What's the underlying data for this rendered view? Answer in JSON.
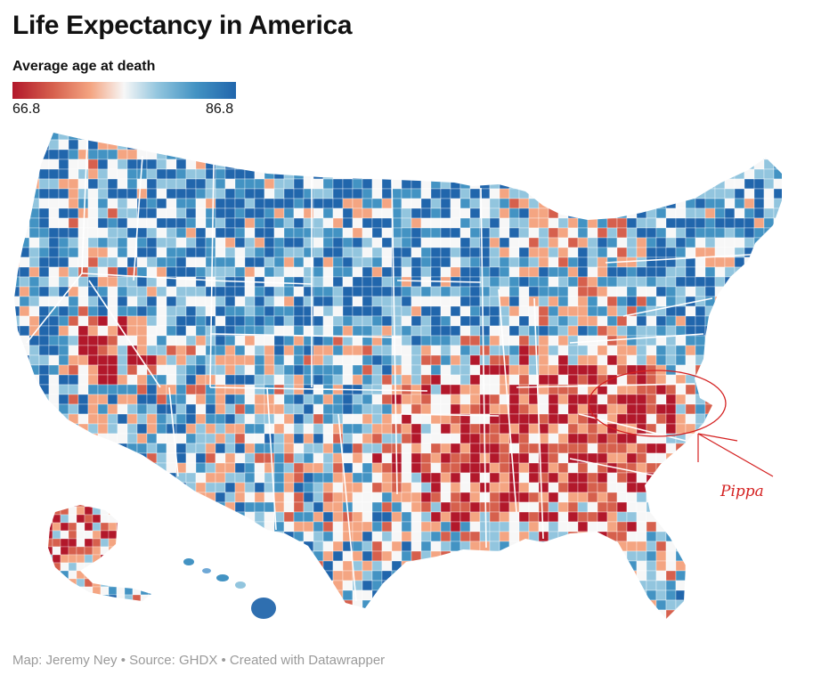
{
  "title": "Life Expectancy in America",
  "legend": {
    "title": "Average age at death",
    "min_label": "66.8",
    "max_label": "86.8",
    "min_value": 66.8,
    "max_value": 86.8,
    "colors": [
      "#b2182b",
      "#d6604d",
      "#f4a582",
      "#f7f7f7",
      "#92c5de",
      "#4393c3",
      "#2166ac"
    ]
  },
  "source": "Map: Jeremy Ney • Source: GHDX • Created with Datawrapper",
  "annotation": {
    "text": "Pippa",
    "color": "#d42020"
  },
  "colors": {
    "state_border": "#ffffff",
    "map_red": "#c0392b",
    "map_blue": "#2f6fb0"
  }
}
